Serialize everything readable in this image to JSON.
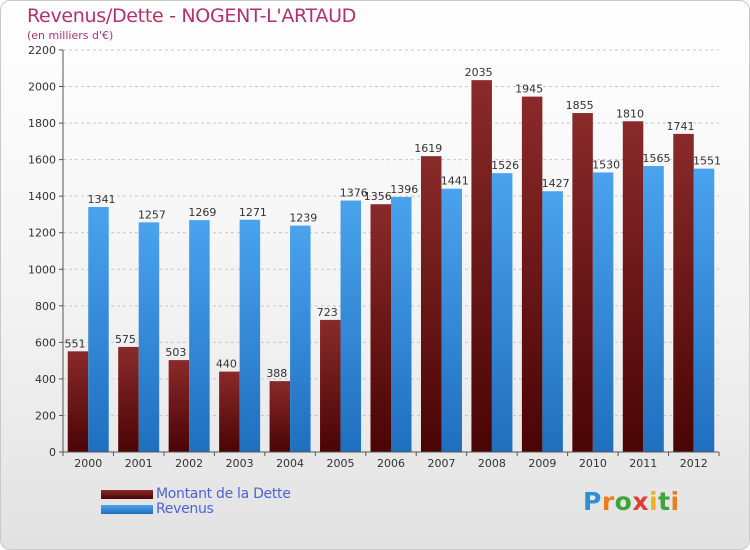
{
  "title": "Revenus/Dette - NOGENT-L'ARTAUD",
  "subtitle": "(en milliers d'€)",
  "logo": {
    "text": "Proxiti",
    "letter_colors": [
      "#2f8fd6",
      "#ea7e1d",
      "#3fa33c",
      "#e23e33",
      "#f0b41a",
      "#3fa33c",
      "#ea7e1d"
    ]
  },
  "colors": {
    "debt": "#7b1a1a",
    "debt_dark": "#4f0808",
    "revenue": "#3f97e6",
    "revenue_dark": "#1e6bb8",
    "grid": "#c8c8c8"
  },
  "chart_data": {
    "type": "bar",
    "categories": [
      "2000",
      "2001",
      "2002",
      "2003",
      "2004",
      "2005",
      "2006",
      "2007",
      "2008",
      "2009",
      "2010",
      "2011",
      "2012"
    ],
    "series": [
      {
        "name": "Montant de la Dette",
        "values": [
          551,
          575,
          503,
          440,
          388,
          723,
          1356,
          1619,
          2035,
          1945,
          1855,
          1810,
          1741
        ]
      },
      {
        "name": "Revenus",
        "values": [
          1341,
          1257,
          1269,
          1271,
          1239,
          1376,
          1396,
          1441,
          1526,
          1427,
          1530,
          1565,
          1551
        ]
      }
    ],
    "ylim": [
      0,
      2200
    ],
    "yticks": [
      "0",
      "200",
      "400",
      "600",
      "800",
      "1000",
      "1200",
      "1400",
      "1600",
      "1800",
      "2000",
      "2200"
    ],
    "grid": true,
    "legend_position": "bottom-left"
  }
}
